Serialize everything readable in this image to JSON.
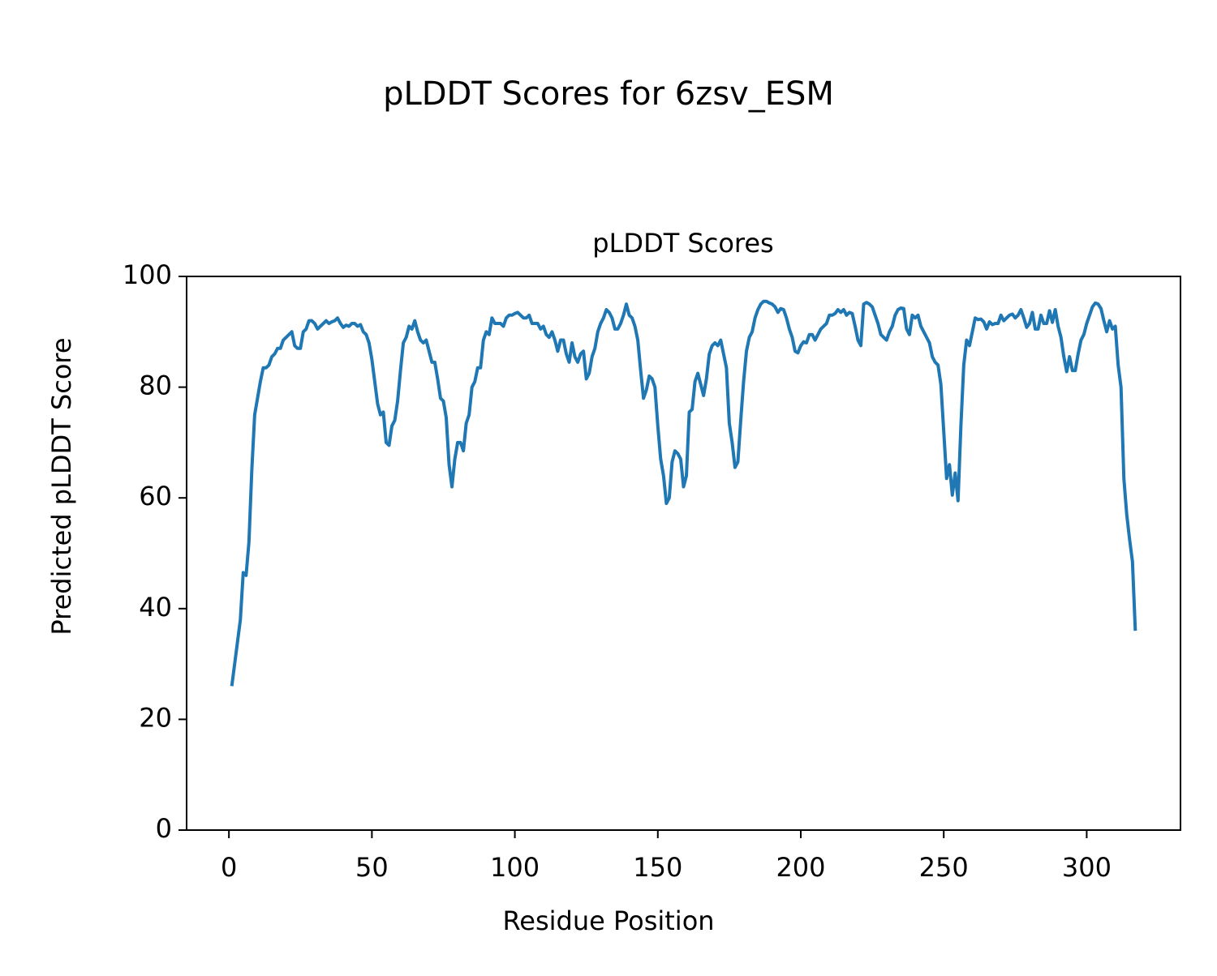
{
  "chart_data": {
    "type": "line",
    "title": "pLDDT Scores for 6zsv_ESM",
    "subtitle": "pLDDT Scores",
    "x_label": "Residue Position",
    "y_label": "Predicted pLDDT Score",
    "color": "#1f77b4",
    "x": [
      1,
      2,
      3,
      4,
      5,
      6,
      7,
      8,
      9,
      10,
      11,
      12,
      13,
      14,
      15,
      16,
      17,
      18,
      19,
      20,
      21,
      22,
      23,
      24,
      25,
      26,
      27,
      28,
      29,
      30,
      31,
      32,
      33,
      34,
      35,
      36,
      37,
      38,
      39,
      40,
      41,
      42,
      43,
      44,
      45,
      46,
      47,
      48,
      49,
      50,
      51,
      52,
      53,
      54,
      55,
      56,
      57,
      58,
      59,
      60,
      61,
      62,
      63,
      64,
      65,
      66,
      67,
      68,
      69,
      70,
      71,
      72,
      73,
      74,
      75,
      76,
      77,
      78,
      79,
      80,
      81,
      82,
      83,
      84,
      85,
      86,
      87,
      88,
      89,
      90,
      91,
      92,
      93,
      94,
      95,
      96,
      97,
      98,
      99,
      100,
      101,
      102,
      103,
      104,
      105,
      106,
      107,
      108,
      109,
      110,
      111,
      112,
      113,
      114,
      115,
      116,
      117,
      118,
      119,
      120,
      121,
      122,
      123,
      124,
      125,
      126,
      127,
      128,
      129,
      130,
      131,
      132,
      133,
      134,
      135,
      136,
      137,
      138,
      139,
      140,
      141,
      142,
      143,
      144,
      145,
      146,
      147,
      148,
      149,
      150,
      151,
      152,
      153,
      154,
      155,
      156,
      157,
      158,
      159,
      160,
      161,
      162,
      163,
      164,
      165,
      166,
      167,
      168,
      169,
      170,
      171,
      172,
      173,
      174,
      175,
      176,
      177,
      178,
      179,
      180,
      181,
      182,
      183,
      184,
      185,
      186,
      187,
      188,
      189,
      190,
      191,
      192,
      193,
      194,
      195,
      196,
      197,
      198,
      199,
      200,
      201,
      202,
      203,
      204,
      205,
      206,
      207,
      208,
      209,
      210,
      211,
      212,
      213,
      214,
      215,
      216,
      217,
      218,
      219,
      220,
      221,
      222,
      223,
      224,
      225,
      226,
      227,
      228,
      229,
      230,
      231,
      232,
      233,
      234,
      235,
      236,
      237,
      238,
      239,
      240,
      241,
      242,
      243,
      244,
      245,
      246,
      247,
      248,
      249,
      250,
      251,
      252,
      253,
      254,
      255,
      256,
      257,
      258,
      259,
      260,
      261,
      262,
      263,
      264,
      265,
      266,
      267,
      268,
      269,
      270,
      271,
      272,
      273,
      274,
      275,
      276,
      277,
      278,
      279,
      280,
      281,
      282,
      283,
      284,
      285,
      286,
      287,
      288,
      289,
      290,
      291,
      292,
      293,
      294,
      295,
      296,
      297,
      298,
      299,
      300,
      301,
      302,
      303,
      304,
      305,
      306,
      307,
      308,
      309,
      310,
      311,
      312,
      313,
      314,
      315,
      316,
      317
    ],
    "values": [
      26,
      30,
      34,
      38,
      46.5,
      46,
      52,
      65,
      75,
      78,
      81,
      83.5,
      83.5,
      84,
      85.5,
      86,
      87,
      87,
      88.5,
      89,
      89.5,
      90,
      87.5,
      87,
      87,
      90,
      90.5,
      92,
      92,
      91.5,
      90.5,
      91,
      91.5,
      92,
      91.5,
      91.8,
      92,
      92.5,
      91.5,
      90.8,
      91.2,
      91,
      91.5,
      91.5,
      91,
      91.3,
      90,
      89.5,
      88,
      85,
      81,
      77,
      75,
      75.5,
      70,
      69.5,
      73,
      74,
      77.5,
      83,
      88,
      89,
      91,
      90.5,
      92,
      90,
      88.5,
      88,
      88.5,
      86.5,
      84.5,
      84.5,
      81.5,
      78,
      77.5,
      74.5,
      66,
      62,
      67,
      70,
      70,
      68.5,
      73.5,
      75,
      80,
      81,
      83.5,
      83.5,
      88.5,
      90,
      89.5,
      92.5,
      91.5,
      91.5,
      91.5,
      91,
      92.5,
      93,
      93,
      93.3,
      93.5,
      93,
      92.5,
      92.5,
      93,
      91.5,
      91.5,
      91.5,
      90.5,
      91,
      89.5,
      89,
      90,
      88.5,
      86.5,
      88.5,
      88.5,
      86,
      84.5,
      88,
      85.5,
      84.5,
      86,
      86.5,
      81.5,
      82.5,
      85.5,
      87,
      90,
      91.5,
      92.5,
      94,
      93.5,
      92.5,
      90.5,
      90.5,
      91.5,
      93,
      95,
      93,
      92.5,
      91,
      88.5,
      83,
      78,
      79.5,
      82,
      81.5,
      80,
      73,
      67,
      64,
      59,
      60,
      66.5,
      68.5,
      68,
      67,
      62,
      64,
      75.5,
      76,
      81,
      82.5,
      80.5,
      78.5,
      81.5,
      86,
      87.5,
      88,
      87.5,
      88.5,
      86,
      83.5,
      73.5,
      70,
      65.5,
      66.5,
      74,
      81,
      86.5,
      89,
      90,
      92.5,
      94,
      95,
      95.5,
      95.5,
      95.2,
      95,
      94.5,
      93.5,
      94.2,
      94,
      92.5,
      90.5,
      89,
      86.5,
      86.2,
      87.5,
      88.2,
      88,
      89.5,
      89.5,
      88.5,
      89.5,
      90.5,
      91,
      91.5,
      93,
      93,
      93.3,
      94,
      93.5,
      94,
      93,
      93.5,
      93.3,
      91,
      88.5,
      87.5,
      95,
      95.3,
      95,
      94.5,
      93,
      91.5,
      89.5,
      89,
      88.5,
      90,
      91,
      93,
      94,
      94.3,
      94.2,
      90.5,
      89.5,
      93,
      92.5,
      93,
      91,
      90,
      89,
      88,
      85.5,
      84.5,
      84,
      80.5,
      72,
      63.5,
      66,
      60.5,
      64.5,
      59.5,
      73,
      84,
      88.5,
      87.5,
      90,
      92.5,
      92.2,
      92.3,
      91.8,
      90.5,
      91.8,
      91.3,
      91.5,
      91.5,
      93,
      92,
      92.5,
      93,
      93.2,
      92.5,
      93,
      94,
      92.5,
      90.8,
      91.5,
      93.5,
      90.5,
      90.5,
      93,
      91.5,
      91.5,
      93.8,
      91.7,
      94,
      91,
      89,
      85.5,
      82.8,
      85.5,
      83,
      83,
      86,
      88.5,
      89.5,
      91.5,
      93,
      94.5,
      95.2,
      95,
      94.2,
      92,
      90,
      92,
      90.5,
      91,
      84,
      80,
      63.5,
      57,
      52.5,
      48.5,
      36
    ],
    "xlim": [
      -14.8,
      332.8
    ],
    "ylim": [
      0,
      100
    ],
    "xticks": [
      0,
      50,
      100,
      150,
      200,
      250,
      300
    ],
    "yticks": [
      0,
      20,
      40,
      60,
      80,
      100
    ]
  }
}
